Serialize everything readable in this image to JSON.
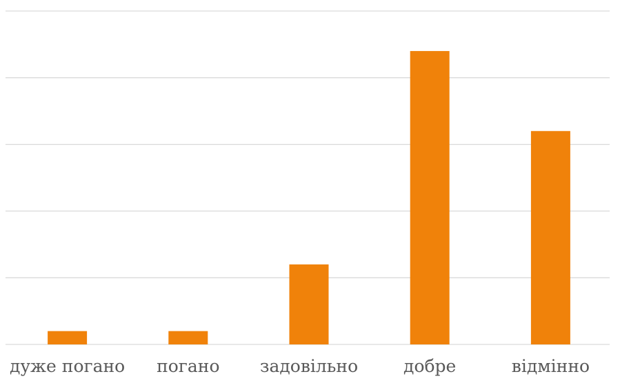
{
  "chart_data": {
    "type": "bar",
    "categories": [
      "дуже погано",
      "погано",
      "задовільно",
      "добре",
      "відмінно"
    ],
    "series": [
      {
        "values": [
          1,
          1,
          6,
          22,
          16
        ],
        "color": "#f0820a"
      }
    ],
    "ylim": [
      0,
      25
    ],
    "ytick_step": 5,
    "grid": true,
    "axis_tick_labels_visible": false,
    "legend": "none",
    "gridline_color": "#d9d9d9",
    "label_color": "#595959"
  }
}
